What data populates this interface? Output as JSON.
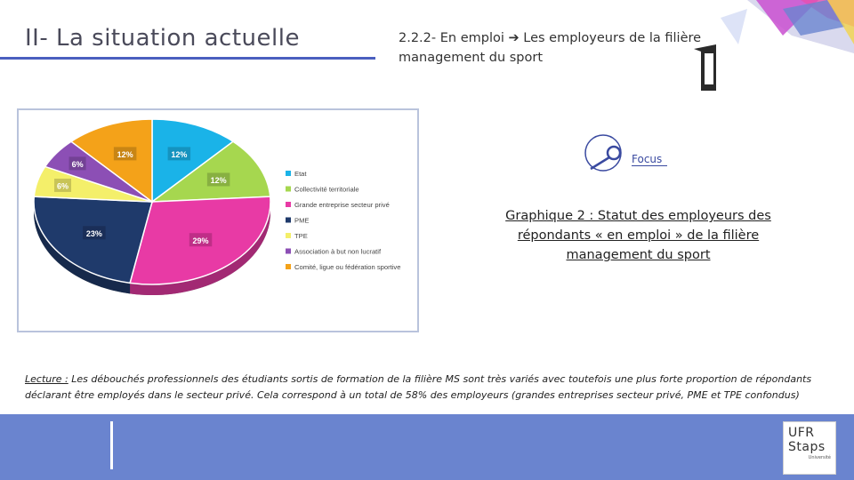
{
  "header": {
    "title": "II- La situation actuelle",
    "subtitle": "2.2.2- En emploi ➔ Les employeurs de la filière management du sport"
  },
  "focus": {
    "label": "Focus"
  },
  "caption": "Graphique 2 : Statut des employeurs des répondants « en emploi » de la filière management du sport",
  "reading": {
    "lead": "Lecture :",
    "text": " Les débouchés professionnels des étudiants sortis de formation de la filière MS sont très variés avec toutefois une plus forte proportion de répondants déclarant être employés dans le secteur privé. Cela correspond à un total de 58% des employeurs (grandes entreprises secteur privé, PME et TPE confondus)"
  },
  "logo": {
    "line1": "UFR",
    "line2": "Staps",
    "small": "Université"
  },
  "chart_data": {
    "type": "pie",
    "slices": [
      {
        "label": "Etat",
        "value": 12,
        "display": "12%",
        "color": "#1ab3e8"
      },
      {
        "label": "Collectivité territoriale",
        "value": 12,
        "display": "12%",
        "color": "#a6d74f"
      },
      {
        "label": "Grande entreprise secteur privé",
        "value": 29,
        "display": "29%",
        "color": "#e83aa5"
      },
      {
        "label": "PME",
        "value": 23,
        "display": "23%",
        "color": "#1f3a6b"
      },
      {
        "label": "TPE",
        "value": 6,
        "display": "6%",
        "color": "#f4ef6a"
      },
      {
        "label": "Association à but non lucratif",
        "value": 6,
        "display": "6%",
        "color": "#8c4fb5"
      },
      {
        "label": "Comité, ligue ou fédération sportive",
        "value": 12,
        "display": "12%",
        "color": "#f4a219"
      }
    ],
    "legend_position": "right"
  }
}
